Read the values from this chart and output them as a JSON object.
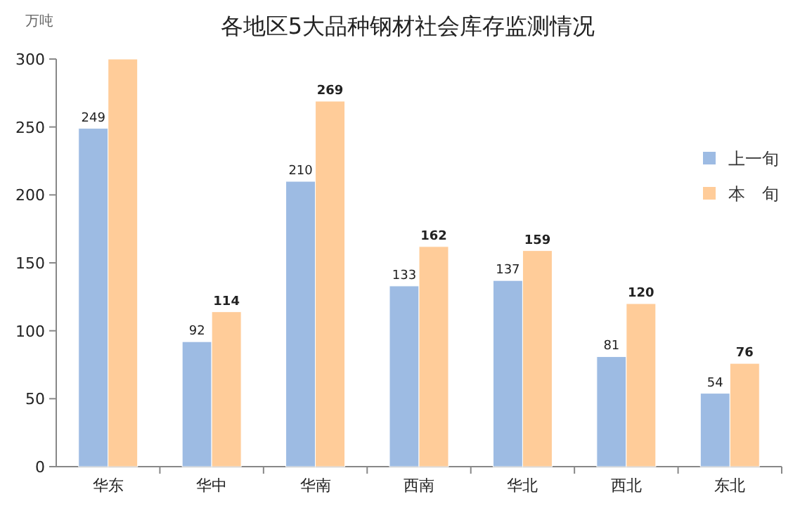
{
  "chart_data": {
    "type": "bar",
    "title": "各地区5大品种钢材社会库存监测情况",
    "ylabel": "万吨",
    "categories": [
      "华东",
      "华中",
      "华南",
      "西南",
      "华北",
      "西北",
      "东北"
    ],
    "series": [
      {
        "name": "上一旬",
        "color": "#9dbbe3",
        "values": [
          249,
          92,
          210,
          133,
          137,
          81,
          54
        ],
        "value_labels": [
          "249",
          "92",
          "210",
          "133",
          "137",
          "81",
          "54"
        ]
      },
      {
        "name": "本　旬",
        "color": "#ffcc99",
        "values": [
          300,
          114,
          269,
          162,
          159,
          120,
          76
        ],
        "value_labels": [
          null,
          "114",
          "269",
          "162",
          "159",
          "120",
          "76"
        ]
      }
    ],
    "ylim": [
      0,
      300
    ],
    "yticks": [
      0,
      50,
      100,
      150,
      200,
      250,
      300
    ],
    "legend": "right"
  }
}
